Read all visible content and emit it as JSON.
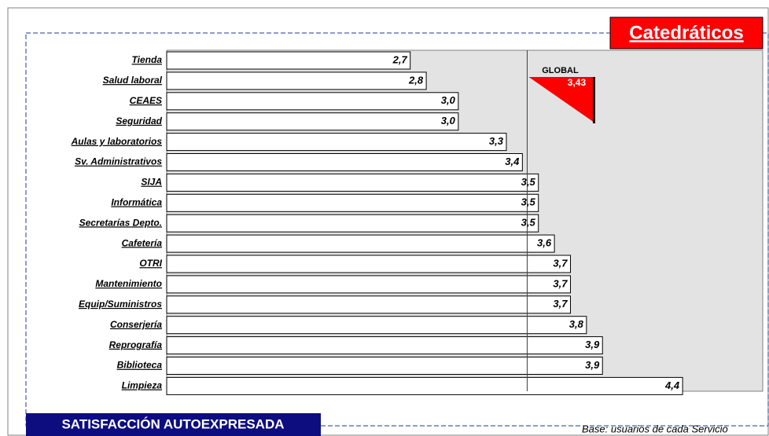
{
  "chart_data": {
    "type": "bar",
    "orientation": "horizontal",
    "title": "Catedráticos",
    "subtitle": "SATISFACCIÓN AUTOEXPRESADA",
    "note": "Base: usuarios de cada Servicio",
    "categories": [
      "Tienda",
      "Salud laboral",
      "CEAES",
      "Seguridad",
      "Aulas y laboratorios",
      "Sv. Administrativos",
      "SIJA",
      "Informática",
      "Secretarías Depto.",
      "Cafetería",
      "OTRI",
      "Mantenimiento",
      "Equip/Suministros",
      "Conserjería",
      "Reprografía",
      "Biblioteca",
      "Limpieza"
    ],
    "values": [
      2.7,
      2.8,
      3.0,
      3.0,
      3.3,
      3.4,
      3.5,
      3.5,
      3.5,
      3.6,
      3.7,
      3.7,
      3.7,
      3.8,
      3.9,
      3.9,
      4.4
    ],
    "value_labels": [
      "2,7",
      "2,8",
      "3,0",
      "3,0",
      "3,3",
      "3,4",
      "3,5",
      "3,5",
      "3,5",
      "3,6",
      "3,7",
      "3,7",
      "3,7",
      "3,8",
      "3,9",
      "3,9",
      "4,4"
    ],
    "color": "#ffffff",
    "xlim": [
      1.18,
      4.9
    ],
    "reference": {
      "name": "GLOBAL",
      "value": 3.43,
      "value_label": "3,43",
      "color": "#ff0000"
    }
  }
}
